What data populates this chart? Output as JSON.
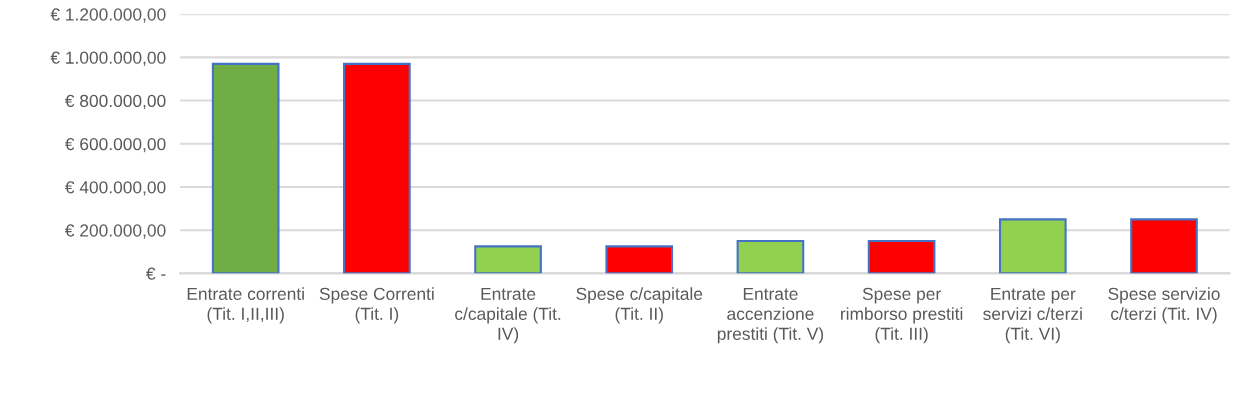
{
  "chart_data": {
    "type": "bar",
    "categories": [
      "Entrate correnti (Tit. I,II,III)",
      "Spese Correnti (Tit. I)",
      "Entrate c/capitale (Tit. IV)",
      "Spese c/capitale (Tit. II)",
      "Entrate accenzione prestiti (Tit. V)",
      "Spese per rimborso prestiti (Tit. III)",
      "Entrate per servizi c/terzi (Tit. VI)",
      "Spese servizio c/terzi (Tit. IV)"
    ],
    "values": [
      970000,
      970000,
      125000,
      125000,
      150000,
      150000,
      250000,
      250000
    ],
    "colors": [
      "#70ad47",
      "#ff0000",
      "#92d050",
      "#ff0000",
      "#92d050",
      "#ff0000",
      "#92d050",
      "#ff0000"
    ],
    "ylim": [
      0,
      1200000
    ],
    "yticks": [
      {
        "value": 0,
        "label": "€ -"
      },
      {
        "value": 200000,
        "label": "€ 200.000,00"
      },
      {
        "value": 400000,
        "label": "€ 400.000,00"
      },
      {
        "value": 600000,
        "label": "€ 600.000,00"
      },
      {
        "value": 800000,
        "label": "€ 800.000,00"
      },
      {
        "value": 1000000,
        "label": "€ 1.000.000,00"
      },
      {
        "value": 1200000,
        "label": "€ 1.200.000,00"
      }
    ],
    "grid": "y",
    "legend": false
  }
}
